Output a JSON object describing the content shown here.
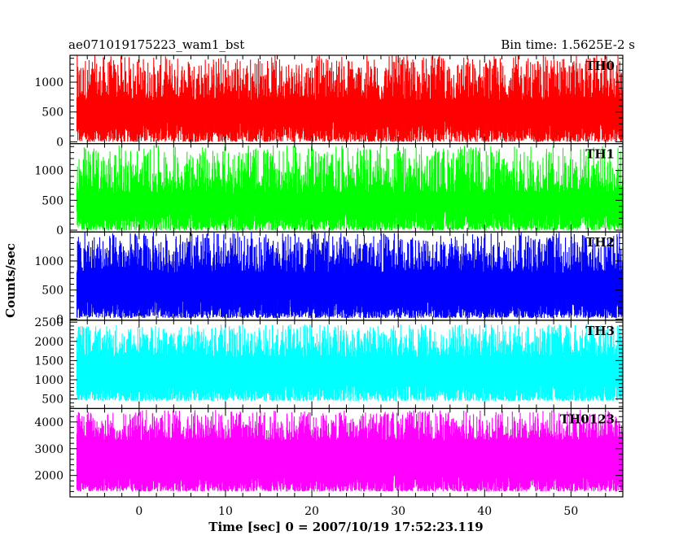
{
  "chart_data": {
    "type": "line",
    "title_left": "ae071019175223_wam1_bst",
    "title_right": "Bin time: 1.5625E-2 s",
    "xlabel": "Time [sec] 0 = 2007/10/19 17:52:23.119",
    "ylabel": "Counts/sec",
    "xlim": [
      -8,
      56
    ],
    "x_ticks": [
      0,
      10,
      20,
      30,
      40,
      50
    ],
    "panels": [
      {
        "name": "TH0",
        "color": "#ff0000",
        "ylim": [
          -30,
          1450
        ],
        "y_ticks": [
          0,
          500,
          1000
        ],
        "band_low": [
          0,
          360
        ],
        "band_high": [
          700,
          1450
        ],
        "center": 550
      },
      {
        "name": "TH1",
        "color": "#00ff00",
        "ylim": [
          -30,
          1450
        ],
        "y_ticks": [
          0,
          500,
          1000
        ],
        "band_low": [
          0,
          330
        ],
        "band_high": [
          620,
          1420
        ],
        "center": 480
      },
      {
        "name": "TH2",
        "color": "#0000ff",
        "ylim": [
          -20,
          1500
        ],
        "y_ticks": [
          0,
          500,
          1000
        ],
        "band_low": [
          20,
          350
        ],
        "band_high": [
          800,
          1500
        ],
        "center": 680
      },
      {
        "name": "TH3",
        "color": "#00ffff",
        "ylim": [
          250,
          2550
        ],
        "y_ticks": [
          500,
          1000,
          1500,
          2000,
          2500
        ],
        "band_low": [
          450,
          950
        ],
        "band_high": [
          1600,
          2450
        ],
        "center": 1300
      },
      {
        "name": "TH0123",
        "color": "#ff00ff",
        "ylim": [
          1200,
          4500
        ],
        "y_ticks": [
          2000,
          3000,
          4000
        ],
        "band_low": [
          1400,
          2050
        ],
        "band_high": [
          3300,
          4450
        ],
        "center": 2700
      }
    ]
  }
}
